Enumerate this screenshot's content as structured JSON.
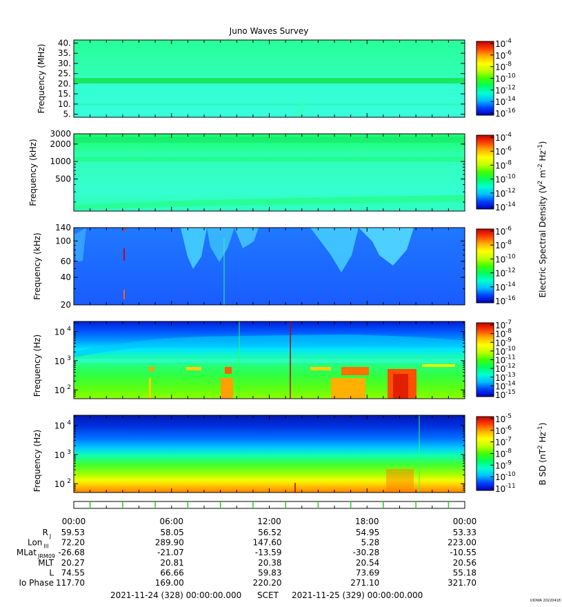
{
  "title": "Juno Waves Survey",
  "colors": {
    "frame": "#000000",
    "band_light": "#22ff99",
    "band_dark": "#18e870",
    "bg_cyan": "#33ffd6",
    "bg_blue": "#1f6bff",
    "orange": "#ffb000",
    "red": "#ff1800",
    "navy": "#0000cc"
  },
  "colorbar_stops": [
    "#0000b4",
    "#0040ff",
    "#00c0ff",
    "#00ffd0",
    "#00ff60",
    "#40ff00",
    "#c0ff00",
    "#ffff00",
    "#ffb000",
    "#ff4000",
    "#c00000"
  ],
  "chart_data": [
    {
      "type": "heatmap",
      "panel": "hf-mhz",
      "ylabel": "Frequency (MHz)",
      "yscale": "linear",
      "ylim": [
        3.5,
        41.5
      ],
      "yticks": [
        5,
        10,
        15,
        20,
        25,
        30,
        35,
        40
      ],
      "yticklabels": [
        "5.",
        "10.",
        "15.",
        "20.",
        "25.",
        "30.",
        "35.",
        "40."
      ],
      "colorbar": {
        "exponents": [
          "-4",
          "-6",
          "-8",
          "-10",
          "-12",
          "-14",
          "-16"
        ]
      }
    },
    {
      "type": "heatmap",
      "panel": "hf-khz",
      "ylabel": "Frequency (kHz)",
      "yscale": "log",
      "ylim": [
        140,
        3000
      ],
      "yticks": [
        500,
        1000,
        2000,
        3000
      ],
      "yticklabels": [
        "500",
        "1000",
        "2000",
        "3000"
      ],
      "colorbar": {
        "exponents": [
          "-4",
          "-6",
          "-8",
          "-10",
          "-12",
          "-14"
        ]
      }
    },
    {
      "type": "heatmap",
      "panel": "lf-khz",
      "ylabel": "Frequency (kHz)",
      "yscale": "log",
      "ylim": [
        20,
        140
      ],
      "yticks": [
        20,
        40,
        60,
        100,
        140
      ],
      "yticklabels": [
        "20",
        "40",
        "60",
        "100",
        "140"
      ],
      "colorbar": {
        "exponents": [
          "-6",
          "-8",
          "-10",
          "-12",
          "-14",
          "-16"
        ]
      }
    },
    {
      "type": "heatmap",
      "panel": "lfr-e-hz",
      "ylabel": "Frequency (Hz)",
      "yscale": "log",
      "ylim": [
        50,
        22000
      ],
      "yticks": [
        100,
        1000,
        10000
      ],
      "ytick_exponents": [
        "2",
        "3",
        "4"
      ],
      "colorbar": {
        "exponents": [
          "-7",
          "-8",
          "-9",
          "-10",
          "-11",
          "-12",
          "-13",
          "-14",
          "-15"
        ]
      }
    },
    {
      "type": "heatmap",
      "panel": "lfr-b-hz",
      "ylabel": "Frequency (Hz)",
      "yscale": "log",
      "ylim": [
        50,
        22000
      ],
      "yticks": [
        100,
        1000,
        10000
      ],
      "ytick_exponents": [
        "2",
        "3",
        "4"
      ],
      "colorbar": {
        "exponents": [
          "-5",
          "-6",
          "-7",
          "-8",
          "-9",
          "-10",
          "-11"
        ]
      }
    }
  ],
  "colorbar_labels": {
    "electric": {
      "prefix": "Electric Spectral Density (V",
      "sup1": "2",
      "mid": " m",
      "sup2": "-2",
      "mid2": " Hz",
      "sup3": "-1",
      "suffix": ")"
    },
    "magnetic": {
      "prefix": "B SD (nT",
      "sup1": "2",
      "mid": " Hz",
      "sup2": "-1",
      "suffix": ")"
    }
  },
  "exponent_base": "10",
  "ephemeris": {
    "times": [
      "00:00",
      "06:00",
      "12:00",
      "18:00",
      "00:00"
    ],
    "rows": [
      {
        "label": "R",
        "sub": "J",
        "values": [
          "59.53",
          "58.05",
          "56.52",
          "54.95",
          "53.33"
        ]
      },
      {
        "label": "Lon",
        "sub": "III",
        "values": [
          "72.20",
          "289.90",
          "147.60",
          "5.28",
          "223.00"
        ]
      },
      {
        "label": "MLat",
        "sub": "JRM09",
        "values": [
          "-26.68",
          "-21.07",
          "-13.59",
          "-30.28",
          "-10.55"
        ]
      },
      {
        "label": "MLT",
        "sub": "",
        "values": [
          "20.27",
          "20.81",
          "20.38",
          "20.54",
          "20.56"
        ]
      },
      {
        "label": "L",
        "sub": "",
        "values": [
          "74.55",
          "66.66",
          "59.83",
          "73.69",
          "55.18"
        ]
      },
      {
        "label": "Io Phase",
        "sub": "",
        "values": [
          "117.70",
          "169.00",
          "220.20",
          "271.10",
          "321.70"
        ]
      }
    ]
  },
  "footer": {
    "start": "2021-11-24 (328) 00:00:00.000",
    "scet": "SCET",
    "end": "2021-11-25 (329) 00:00:00.000",
    "credit": "UIOWA 20220418"
  }
}
